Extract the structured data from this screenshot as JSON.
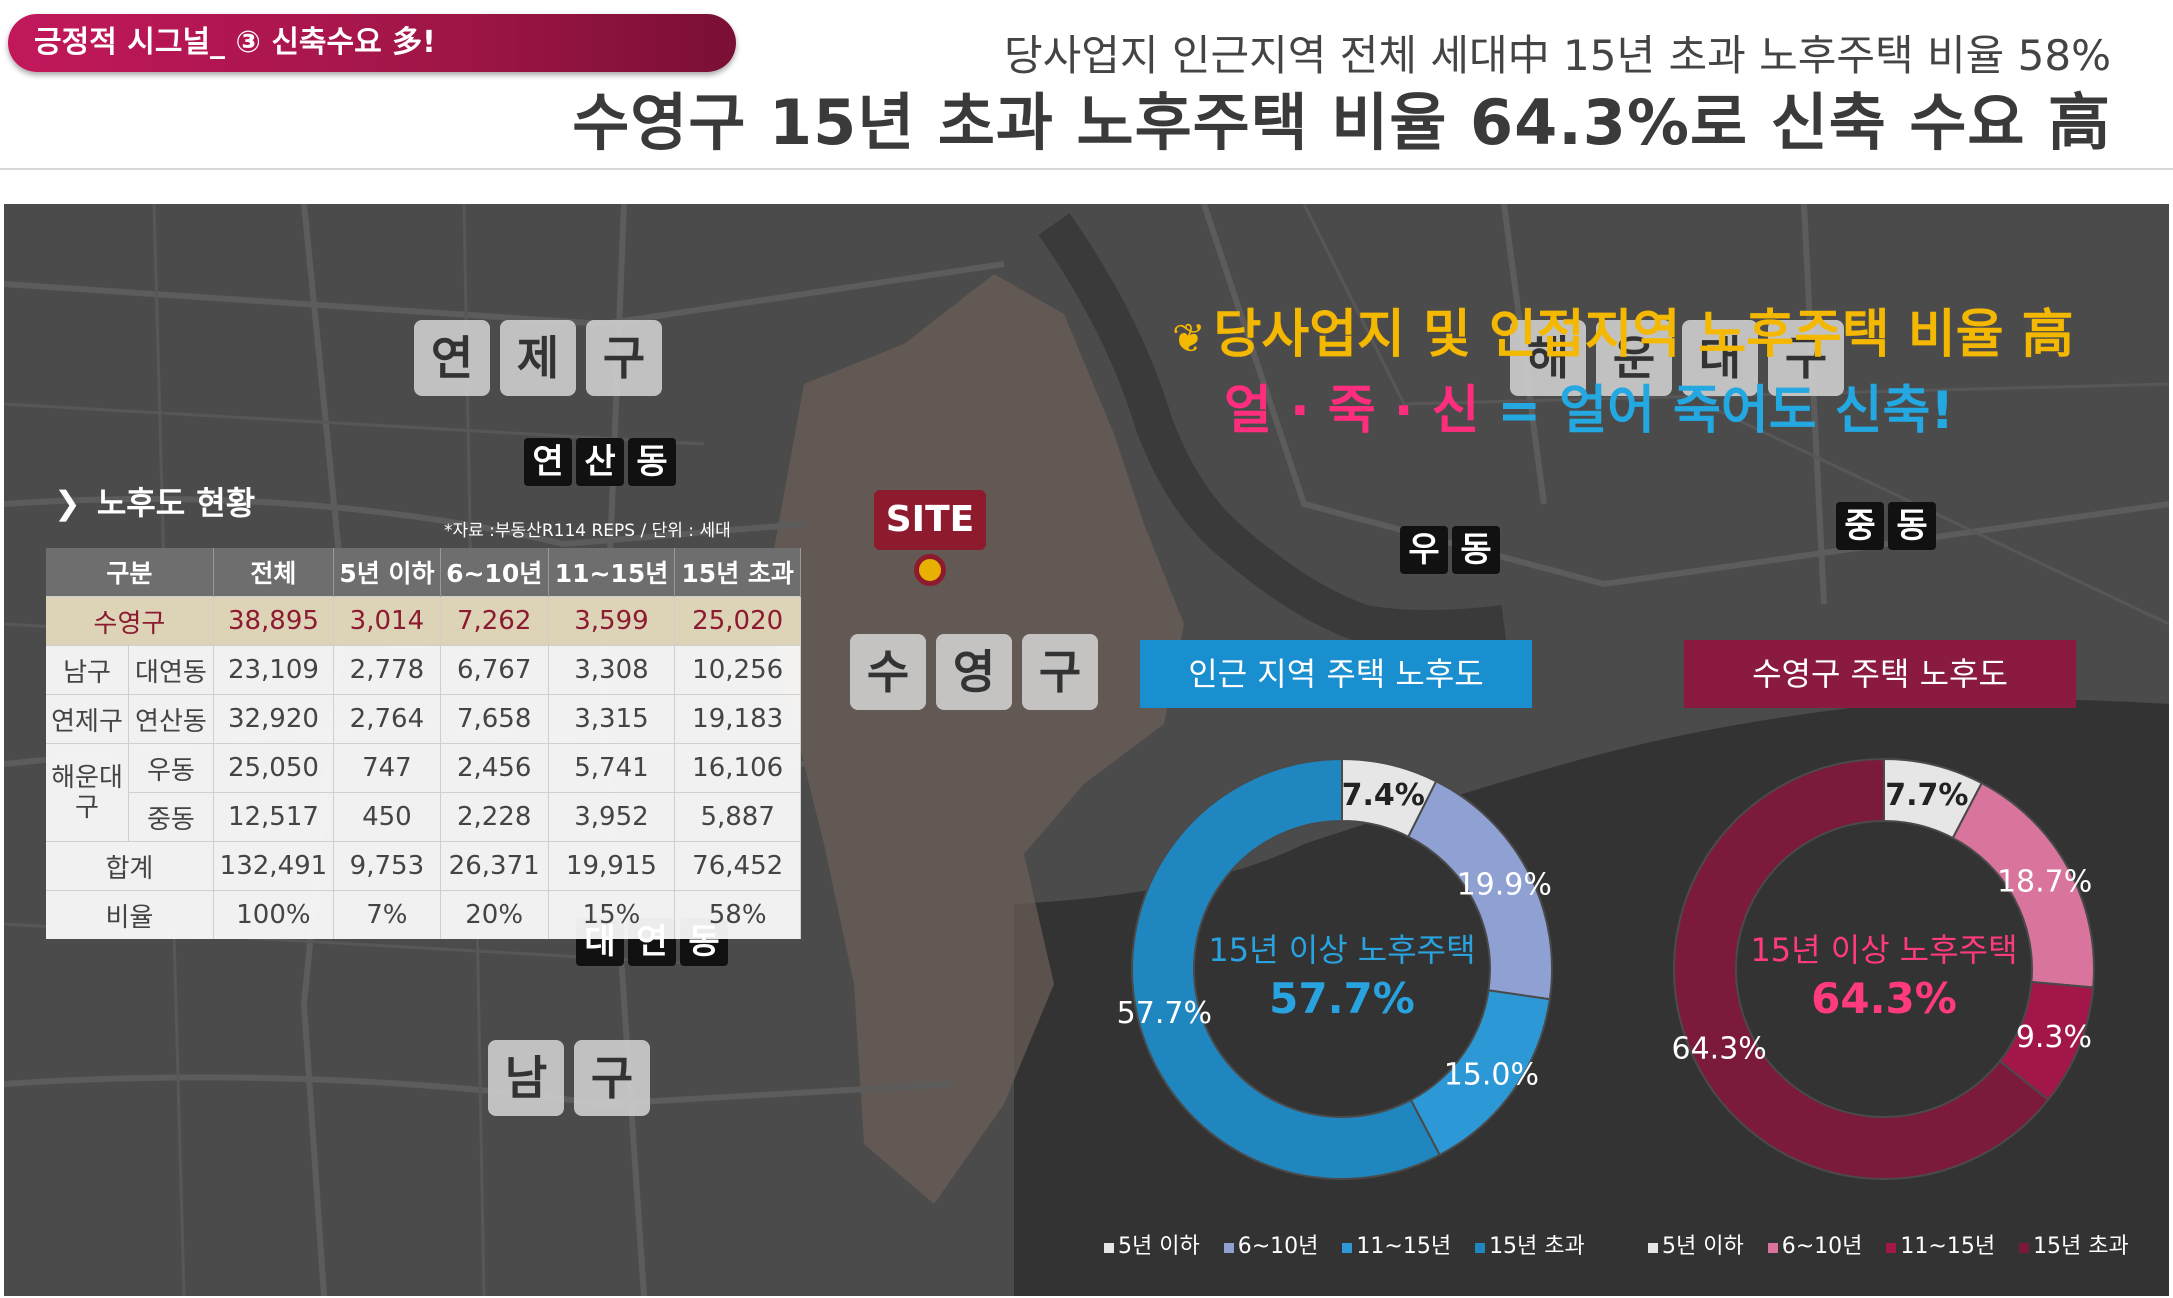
{
  "header": {
    "badge": "긍정적 시그널_ ③ 신축수요 多!",
    "subtitle": "당사업지 인근지역 전체 세대中 15년 초과 노후주택 비율 58%",
    "title": "수영구 15년 초과 노후주택 비율 64.3%로 신축 수요 高"
  },
  "map": {
    "districts": [
      {
        "name": "연 제 구",
        "chars": [
          "연",
          "제",
          "구"
        ]
      },
      {
        "name": "해 운 대 구",
        "chars": [
          "해",
          "운",
          "대",
          "구"
        ]
      },
      {
        "name": "수 영 구",
        "chars": [
          "수",
          "영",
          "구"
        ]
      },
      {
        "name": "남 구",
        "chars": [
          "남",
          "구"
        ]
      }
    ],
    "neighborhoods": [
      {
        "name": "연산동",
        "chars": [
          "연",
          "산",
          "동"
        ]
      },
      {
        "name": "우동",
        "chars": [
          "우",
          "동"
        ]
      },
      {
        "name": "중동",
        "chars": [
          "중",
          "동"
        ]
      },
      {
        "name": "대연동",
        "chars": [
          "대",
          "연",
          "동"
        ]
      }
    ],
    "site_label": "SITE"
  },
  "table": {
    "title": "노후도 현황",
    "note": "*자료 :부동산R114 REPS / 단위 : 세대",
    "headers": [
      "구분",
      "전체",
      "5년 이하",
      "6~10년",
      "11~15년",
      "15년 초과"
    ],
    "rows": [
      {
        "label": "수영구",
        "total": "38,895",
        "y5": "3,014",
        "y10": "7,262",
        "y15": "3,599",
        "y15p": "25,020"
      },
      {
        "group": "남구",
        "label": "대연동",
        "total": "23,109",
        "y5": "2,778",
        "y10": "6,767",
        "y15": "3,308",
        "y15p": "10,256"
      },
      {
        "group": "연제구",
        "label": "연산동",
        "total": "32,920",
        "y5": "2,764",
        "y10": "7,658",
        "y15": "3,315",
        "y15p": "19,183"
      },
      {
        "group": "해운대구",
        "label": "우동",
        "total": "25,050",
        "y5": "747",
        "y10": "2,456",
        "y15": "5,741",
        "y15p": "16,106"
      },
      {
        "label": "중동",
        "total": "12,517",
        "y5": "450",
        "y10": "2,228",
        "y15": "3,952",
        "y15p": "5,887"
      },
      {
        "label": "합계",
        "total": "132,491",
        "y5": "9,753",
        "y10": "26,371",
        "y15": "19,915",
        "y15p": "76,452"
      },
      {
        "label": "비율",
        "total": "100%",
        "y5": "7%",
        "y10": "20%",
        "y15": "15%",
        "y15p": "58%"
      }
    ]
  },
  "highlight": {
    "heading": "당사업지 및 인접지역 노후주택 비율 高",
    "slogan_part1": "얼 · 죽 · 신",
    "slogan_eq": " = ",
    "slogan_part2": "얼어 죽어도 신축!"
  },
  "chart_data": [
    {
      "type": "pie",
      "title": "인근 지역 주택 노후도",
      "categories": [
        "5년 이하",
        "6~10년",
        "11~15년",
        "15년 초과"
      ],
      "values": [
        7.4,
        19.9,
        15.0,
        57.7
      ],
      "labels": [
        "7.4%",
        "19.9%",
        "15.0%",
        "57.7%"
      ],
      "center_label": "15년 이상 노후주택",
      "center_value": "57.7%",
      "colors": [
        "#e6e6e6",
        "#8fa0d3",
        "#2c98d6",
        "#1f86bf"
      ],
      "title_bar_color": "#1a8fd0",
      "center_color": "#29a3e0",
      "legend": "bottom"
    },
    {
      "type": "pie",
      "title": "수영구 주택 노후도",
      "categories": [
        "5년 이하",
        "6~10년",
        "11~15년",
        "15년 초과"
      ],
      "values": [
        7.7,
        18.7,
        9.3,
        64.3
      ],
      "labels": [
        "7.7%",
        "18.7%",
        "9.3%",
        "64.3%"
      ],
      "center_label": "15년 이상 노후주택",
      "center_value": "64.3%",
      "colors": [
        "#e6e6e6",
        "#d9749c",
        "#a3164a",
        "#7c1a3b"
      ],
      "title_bar_color": "#8a1a40",
      "center_color": "#ff3a7d",
      "legend": "bottom"
    }
  ]
}
